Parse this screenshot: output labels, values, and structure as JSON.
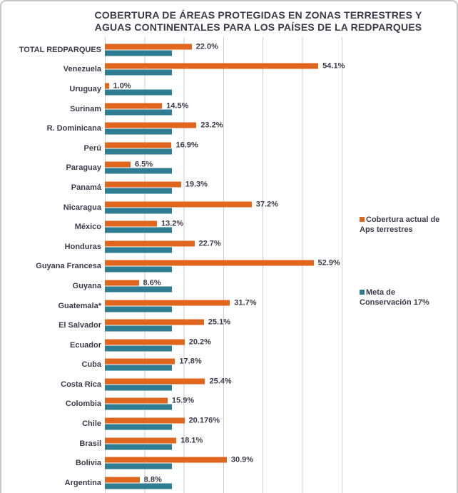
{
  "page": {
    "background": "#ffffff",
    "border_color": "#c9c9c9",
    "text_color": "#3c3b4a",
    "gridline_color": "#cccccc"
  },
  "title_lines": {
    "line1": "COBERTURA DE ÁREAS PROTEGIDAS EN ZONAS TERRESTRES Y",
    "line2": "AGUAS CONTINENTALES PARA LOS PAÍSES DE LA REDPARQUES"
  },
  "chart_data": {
    "type": "bar",
    "orientation": "horizontal",
    "title": "COBERTURA DE ÁREAS PROTEGIDAS EN ZONAS TERRESTRES Y AGUAS CONTINENTALES PARA LOS PAÍSES DE LA REDPARQUES",
    "categories": [
      "TOTAL REDPARQUES",
      "Venezuela",
      "Uruguay",
      "Surinam",
      "R. Dominicana",
      "Perú",
      "Paraguay",
      "Panamá",
      "Nicaragua",
      "México",
      "Honduras",
      "Guyana Francesa",
      "Guyana",
      "Guatemala*",
      "El Salvador",
      "Ecuador",
      "Cuba",
      "Costa Rica",
      "Colombia",
      "Chile",
      "Brasil",
      "Bolivia",
      "Argentina"
    ],
    "series": [
      {
        "name": "Cobertura actual de Aps terrestres",
        "color": "#e0661e",
        "values": [
          22.0,
          54.1,
          1.0,
          14.5,
          23.2,
          16.9,
          6.5,
          19.3,
          37.2,
          13.2,
          22.7,
          52.9,
          8.6,
          31.7,
          25.1,
          20.2,
          17.8,
          25.4,
          15.9,
          20.176,
          18.1,
          30.9,
          8.8
        ],
        "value_labels": [
          "22.0%",
          "54.1%",
          "1.0%",
          "14.5%",
          "23.2%",
          "16.9%",
          "6.5%",
          "19.3%",
          "37.2%",
          "13.2%",
          "22.7%",
          "52.9%",
          "8.6%",
          "31.7%",
          "25.1%",
          "20.2%",
          "17.8%",
          "25.4%",
          "15.9%",
          "20.176%",
          "18.1%",
          "30.9%",
          "8.8%"
        ],
        "labels_shown": true
      },
      {
        "name": "Meta de Conservación 17%",
        "color": "#2e7d92",
        "values": [
          17,
          17,
          17,
          17,
          17,
          17,
          17,
          17,
          17,
          17,
          17,
          17,
          17,
          17,
          17,
          17,
          17,
          17,
          17,
          17,
          17,
          17,
          17
        ],
        "labels_shown": false
      }
    ],
    "xlim": [
      0,
      60
    ],
    "gridline_interval_pct": 10,
    "grid": true,
    "legend_position": "right",
    "xlabel": "",
    "ylabel": ""
  }
}
